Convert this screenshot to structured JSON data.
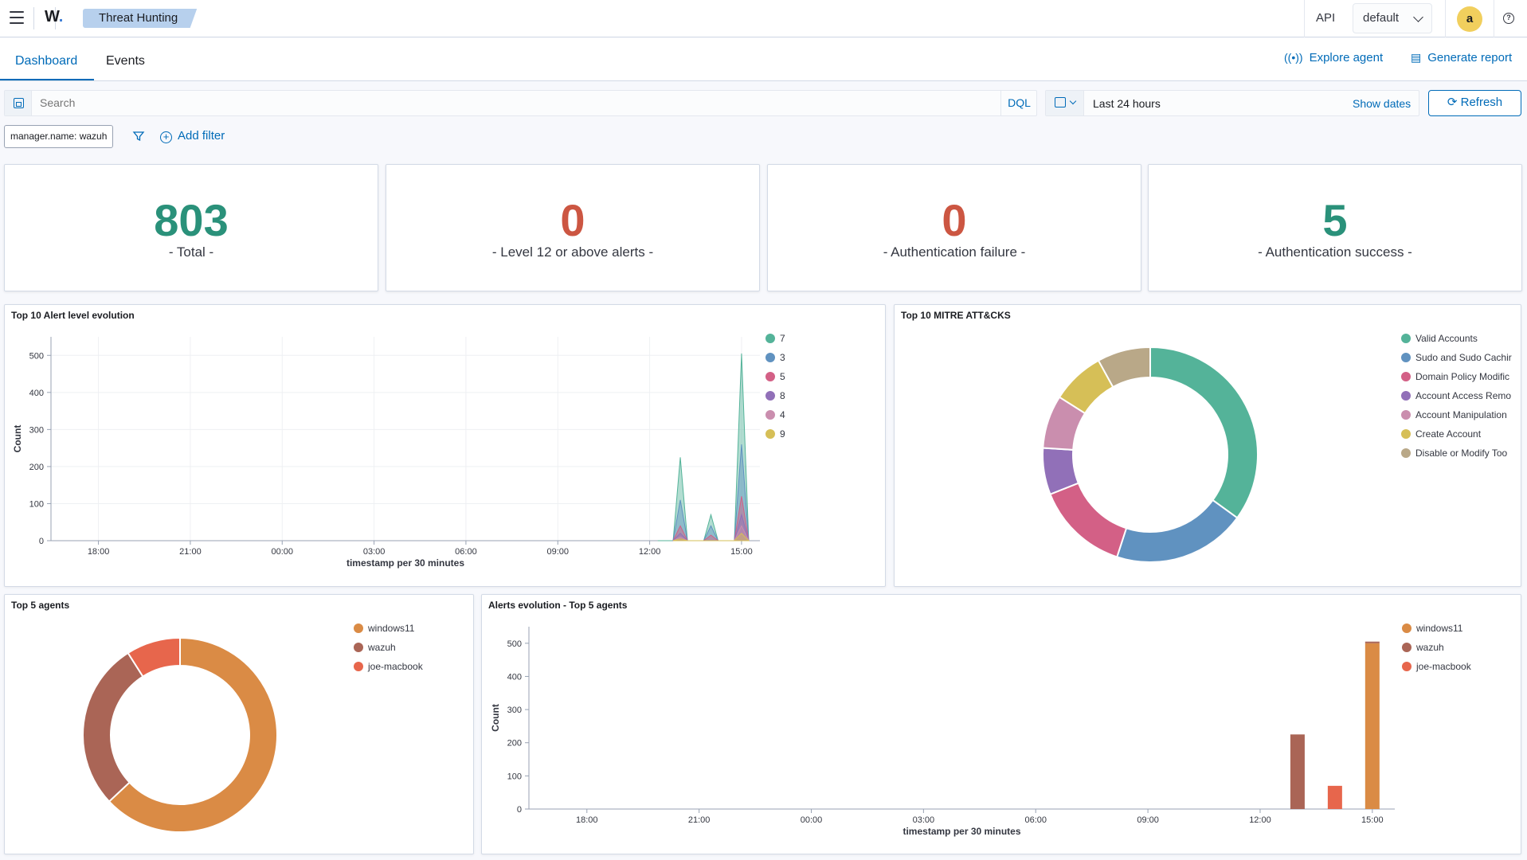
{
  "header": {
    "app_logo": "W",
    "breadcrumb": "Threat Hunting",
    "api_label": "API",
    "index_select": "default",
    "user_initial": "a",
    "help_icon": "help-icon"
  },
  "tabs": [
    {
      "label": "Dashboard",
      "active": true
    },
    {
      "label": "Events",
      "active": false
    }
  ],
  "actions": {
    "explore_agent": "Explore agent",
    "generate_report": "Generate report"
  },
  "search": {
    "placeholder": "Search",
    "dql_label": "DQL",
    "date_range": "Last 24 hours",
    "show_dates": "Show dates",
    "refresh_label": "Refresh"
  },
  "filters": {
    "pills": [
      "manager.name: wazuh"
    ],
    "add_filter_label": "Add filter"
  },
  "stats": [
    {
      "value": "803",
      "label": "- Total -",
      "color": "#2a917a"
    },
    {
      "value": "0",
      "label": "- Level 12 or above alerts -",
      "color": "#cc5642"
    },
    {
      "value": "0",
      "label": "- Authentication failure -",
      "color": "#cc5642"
    },
    {
      "value": "5",
      "label": "- Authentication success -",
      "color": "#2a917a"
    }
  ],
  "panels": {
    "alert_level": {
      "title": "Top 10 Alert level evolution"
    },
    "mitre": {
      "title": "Top 10 MITRE ATT&CKS"
    },
    "top_agents": {
      "title": "Top 5 agents"
    },
    "agents_evolution": {
      "title": "Alerts evolution - Top 5 agents"
    }
  },
  "chart_data": [
    {
      "type": "area",
      "title": "Top 10 Alert level evolution",
      "xlabel": "timestamp per 30 minutes",
      "ylabel": "Count",
      "x_ticks": [
        "18:00",
        "21:00",
        "00:00",
        "03:00",
        "06:00",
        "09:00",
        "12:00",
        "15:00"
      ],
      "y_ticks": [
        0,
        100,
        200,
        300,
        400,
        500
      ],
      "ylim": [
        0,
        550
      ],
      "grid": true,
      "legend_position": "right",
      "series": [
        {
          "name": "7",
          "color": "#54b399",
          "points": [
            [
              "12:30",
              0
            ],
            [
              "13:00",
              225
            ],
            [
              "13:30",
              0
            ],
            [
              "14:00",
              70
            ],
            [
              "14:30",
              0
            ],
            [
              "15:00",
              505
            ]
          ]
        },
        {
          "name": "3",
          "color": "#6092c0",
          "points": [
            [
              "13:00",
              110
            ],
            [
              "14:00",
              40
            ],
            [
              "15:00",
              260
            ]
          ]
        },
        {
          "name": "5",
          "color": "#d36086",
          "points": [
            [
              "13:00",
              40
            ],
            [
              "14:00",
              15
            ],
            [
              "15:00",
              120
            ]
          ]
        },
        {
          "name": "8",
          "color": "#9170b8",
          "points": [
            [
              "13:00",
              20
            ],
            [
              "15:00",
              70
            ]
          ]
        },
        {
          "name": "4",
          "color": "#ca8eae",
          "points": [
            [
              "13:00",
              10
            ],
            [
              "15:00",
              40
            ]
          ]
        },
        {
          "name": "9",
          "color": "#d6bf57",
          "points": [
            [
              "13:00",
              5
            ],
            [
              "15:00",
              20
            ]
          ]
        }
      ]
    },
    {
      "type": "pie",
      "title": "Top 10 MITRE ATT&CKS",
      "donut": true,
      "legend_position": "right",
      "slices": [
        {
          "label": "Valid Accounts",
          "value": 35,
          "color": "#54b399"
        },
        {
          "label": "Sudo and Sudo Cachir",
          "value": 20,
          "color": "#6092c0"
        },
        {
          "label": "Domain Policy Modific",
          "value": 14,
          "color": "#d36086"
        },
        {
          "label": "Account Access Remo",
          "value": 7,
          "color": "#9170b8"
        },
        {
          "label": "Account Manipulation",
          "value": 8,
          "color": "#ca8eae"
        },
        {
          "label": "Create Account",
          "value": 8,
          "color": "#d6bf57"
        },
        {
          "label": "Disable or Modify Too",
          "value": 8,
          "color": "#b9a888"
        }
      ]
    },
    {
      "type": "pie",
      "title": "Top 5 agents",
      "donut": true,
      "legend_position": "right",
      "slices": [
        {
          "label": "windows11",
          "value": 63,
          "color": "#da8b45"
        },
        {
          "label": "wazuh",
          "value": 28,
          "color": "#aa6556"
        },
        {
          "label": "joe-macbook",
          "value": 9,
          "color": "#e7664c"
        }
      ]
    },
    {
      "type": "bar",
      "title": "Alerts evolution - Top 5 agents",
      "xlabel": "timestamp per 30 minutes",
      "ylabel": "Count",
      "x_ticks": [
        "18:00",
        "21:00",
        "00:00",
        "03:00",
        "06:00",
        "09:00",
        "12:00",
        "15:00"
      ],
      "y_ticks": [
        0,
        100,
        200,
        300,
        400,
        500
      ],
      "ylim": [
        0,
        550
      ],
      "grid": false,
      "legend_position": "right",
      "bars": [
        {
          "x": "13:00",
          "series": "wazuh",
          "value": 225,
          "color": "#aa6556"
        },
        {
          "x": "14:00",
          "series": "joe-macbook",
          "value": 70,
          "color": "#e7664c"
        },
        {
          "x": "15:00",
          "series": "windows11",
          "value": 500,
          "color": "#da8b45"
        },
        {
          "x": "15:00",
          "series": "wazuh",
          "value": 5,
          "color": "#aa6556"
        }
      ],
      "series": [
        {
          "name": "windows11",
          "color": "#da8b45"
        },
        {
          "name": "wazuh",
          "color": "#aa6556"
        },
        {
          "name": "joe-macbook",
          "color": "#e7664c"
        }
      ]
    }
  ]
}
